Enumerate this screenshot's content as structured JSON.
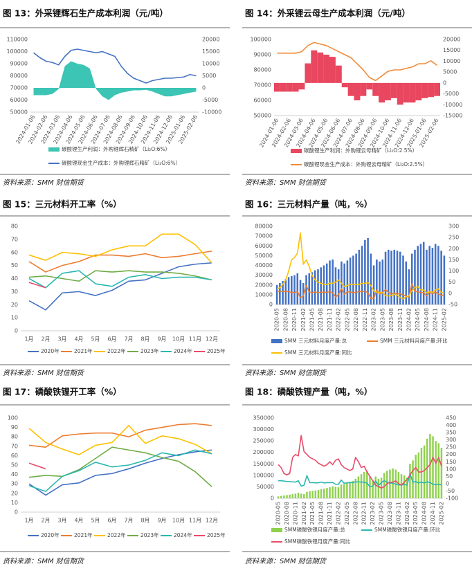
{
  "chart_data": [
    {
      "type": "combo",
      "title": "图 13：外采锂辉石生产成本利润（元/吨）",
      "source": "资料来源：SMM 财信期货",
      "categories": [
        "2024-01-06",
        null,
        "2024-02-06",
        null,
        "2024-03-06",
        null,
        "2024-04-06",
        null,
        "2024-05-06",
        null,
        "2024-06-06",
        null,
        "2024-07-06",
        null,
        "2024-08-06",
        null,
        "2024-09-06",
        null,
        "2024-10-06",
        null,
        "2024-11-06",
        null,
        "2024-12-06",
        null,
        "2025-01-06",
        null,
        "2025-02-06"
      ],
      "ylim": [
        50000,
        110000
      ],
      "yticks": [
        50000,
        60000,
        70000,
        80000,
        90000,
        100000,
        110000
      ],
      "y2lim": [
        -10000,
        20000
      ],
      "y2ticks": [
        -10000,
        -5000,
        0,
        5000,
        10000,
        15000,
        20000
      ],
      "series": [
        {
          "name": "碳酸锂生产利润：外购锂辉石精矿（Li₂O:6%）",
          "type": "area",
          "axis": "y2",
          "color": "#3cc4b4",
          "values": [
            -3000,
            -3000,
            -3000,
            -2500,
            -500,
            9000,
            11000,
            10000,
            9500,
            8000,
            -500,
            -3500,
            -5000,
            -3000,
            -2000,
            -1500,
            -1000,
            -1000,
            -800,
            -1500,
            -2500,
            -3500,
            -3500,
            -3000,
            -2500,
            -2000,
            -1500
          ]
        },
        {
          "name": "碳酸锂现金生产成本：外购锂辉石精矿（Li₂O:6%）",
          "type": "line",
          "axis": "y",
          "color": "#4472c4",
          "values": [
            99000,
            95000,
            92000,
            91000,
            89000,
            96000,
            101000,
            102000,
            101000,
            100000,
            99000,
            100000,
            98000,
            96000,
            88000,
            82000,
            78000,
            76000,
            74000,
            76000,
            77000,
            78000,
            78000,
            78500,
            79000,
            81000,
            80000
          ]
        }
      ]
    },
    {
      "type": "combo",
      "title": "图 14：外采锂云母生产成本利润（元/吨）",
      "source": "资料来源：SMM 财信期货",
      "categories": [
        "2024-01-06",
        null,
        "2024-02-06",
        null,
        "2024-03-06",
        null,
        "2024-04-06",
        null,
        "2024-05-06",
        null,
        "2024-06-06",
        null,
        "2024-07-06",
        null,
        "2024-08-06",
        null,
        "2024-09-06",
        null,
        "2024-10-06",
        null,
        "2024-11-06",
        null,
        "2024-12-06",
        null,
        "2025-01-06",
        null,
        "2025-02-06"
      ],
      "ylim": [
        50000,
        100000
      ],
      "yticks": [
        50000,
        60000,
        70000,
        80000,
        90000,
        100000
      ],
      "y2lim": [
        -15000,
        20000
      ],
      "y2ticks": [
        -15000,
        -10000,
        -5000,
        0,
        5000,
        10000,
        15000,
        20000
      ],
      "series": [
        {
          "name": "碳酸锂生产利润：外购锂云母精矿（Li₂O:2.5%）",
          "type": "bar",
          "axis": "y2",
          "color": "#e8475f",
          "values": [
            -4000,
            -4000,
            -4000,
            -4000,
            -3000,
            9000,
            15000,
            14000,
            13000,
            12000,
            8000,
            -2000,
            -6000,
            -8000,
            -6000,
            -3000,
            -6000,
            -9000,
            -8000,
            -7000,
            -10000,
            -9000,
            -9000,
            -8000,
            -7000,
            -6500,
            -6000
          ]
        },
        {
          "name": "碳酸锂现金生产成本：外购锂云母精矿（Li₂O:2.5%）",
          "type": "line",
          "axis": "y",
          "color": "#f08c3a",
          "values": [
            91000,
            91000,
            91000,
            91000,
            92000,
            96000,
            98000,
            97000,
            96000,
            94000,
            92000,
            90000,
            88000,
            84000,
            80000,
            75000,
            73000,
            76000,
            79000,
            80000,
            80000,
            81000,
            82000,
            84000,
            84000,
            86000,
            83000
          ]
        }
      ]
    },
    {
      "type": "line",
      "title": "图 15：三元材料开工率（%）",
      "source": "资料来源：SMM 财信期货",
      "categories": [
        "1月",
        "2月",
        "3月",
        "4月",
        "5月",
        "6月",
        "7月",
        "8月",
        "9月",
        "10月",
        "11月",
        "12月"
      ],
      "ylim": [
        0,
        80
      ],
      "yticks": [
        0,
        10,
        20,
        30,
        40,
        50,
        60,
        70,
        80
      ],
      "series": [
        {
          "name": "2020年",
          "color": "#4472c4",
          "values": [
            23,
            16,
            29,
            30,
            27,
            31,
            38,
            39,
            44,
            49,
            51,
            52
          ]
        },
        {
          "name": "2021年",
          "color": "#ed7d31",
          "values": [
            53,
            45,
            50,
            53,
            58,
            58,
            57,
            59,
            56,
            57,
            59,
            61
          ]
        },
        {
          "name": "2022年",
          "color": "#ffc000",
          "values": [
            58,
            54,
            60,
            59,
            57,
            62,
            65,
            65,
            74,
            74,
            66,
            52
          ]
        },
        {
          "name": "2023年",
          "color": "#70ad47",
          "values": [
            41,
            42,
            40,
            38,
            46,
            45,
            46,
            45,
            45,
            44,
            42,
            39
          ]
        },
        {
          "name": "2024年",
          "color": "#2ab7b0",
          "values": [
            40,
            33,
            44,
            46,
            36,
            34,
            41,
            43,
            40,
            41,
            41,
            39
          ]
        },
        {
          "name": "2025年",
          "color": "#e84c6a",
          "values": [
            37,
            33,
            null,
            null,
            null,
            null,
            null,
            null,
            null,
            null,
            null,
            null
          ]
        }
      ]
    },
    {
      "type": "combo",
      "title": "图 16：三元材料产量（吨，%）",
      "source": "资料来源：SMM 财信期货",
      "categories": [
        "2020-05",
        null,
        null,
        "2020-08",
        null,
        null,
        "2020-11",
        null,
        null,
        "2021-02",
        null,
        null,
        "2021-05",
        null,
        null,
        "2021-08",
        null,
        null,
        "2021-11",
        null,
        null,
        "2022-02",
        null,
        null,
        "2022-05",
        null,
        null,
        "2022-08",
        null,
        null,
        "2022-11",
        null,
        null,
        "2023-02",
        null,
        null,
        "2023-05",
        null,
        null,
        "2023-08",
        null,
        null,
        "2023-11",
        null,
        null,
        "2024-02",
        null,
        null,
        "2024-05",
        null,
        null,
        "2024-08",
        null,
        null,
        "2024-11",
        null,
        null,
        "2025-02"
      ],
      "ylim": [
        0,
        80000
      ],
      "yticks": [
        0,
        10000,
        20000,
        30000,
        40000,
        50000,
        60000,
        70000,
        80000
      ],
      "y2lim": [
        -50,
        300
      ],
      "y2ticks": [
        -50,
        0,
        50,
        100,
        150,
        200,
        250,
        300
      ],
      "series": [
        {
          "name": "SMM 三元材料月度产量:总",
          "type": "bar",
          "axis": "y",
          "color": "#4472c4",
          "values": [
            20000,
            22000,
            24000,
            26000,
            28000,
            29000,
            30000,
            32000,
            25000,
            22000,
            30000,
            32000,
            33000,
            35000,
            36000,
            38000,
            40000,
            42000,
            45000,
            46000,
            38000,
            36000,
            44000,
            42000,
            45000,
            48000,
            50000,
            52000,
            56000,
            60000,
            66000,
            68000,
            52000,
            40000,
            46000,
            44000,
            46000,
            54000,
            56000,
            55000,
            56000,
            55000,
            54000,
            50000,
            44000,
            36000,
            52000,
            56000,
            60000,
            62000,
            64000,
            56000,
            60000,
            58000,
            62000,
            60000,
            55000,
            50000
          ]
        },
        {
          "name": "SMM 三元材料月度产量:环比",
          "type": "line",
          "axis": "y2",
          "color": "#ed7d31",
          "values": [
            5,
            10,
            8,
            9,
            7,
            4,
            3,
            8,
            -20,
            -12,
            35,
            6,
            3,
            6,
            3,
            5,
            5,
            5,
            7,
            2,
            -17,
            -5,
            22,
            -4,
            7,
            6,
            4,
            4,
            8,
            7,
            10,
            3,
            -23,
            -23,
            15,
            -4,
            5,
            17,
            4,
            -2,
            2,
            -2,
            -2,
            -7,
            -12,
            -18,
            44,
            8,
            7,
            3,
            3,
            -12,
            7,
            -3,
            7,
            -3,
            -8,
            -9
          ]
        },
        {
          "name": "SMM 三元材料月度产量:同比",
          "type": "line",
          "axis": "y2",
          "color": "#ffc000",
          "values": [
            20,
            25,
            40,
            60,
            100,
            150,
            160,
            180,
            270,
            130,
            150,
            120,
            80,
            60,
            50,
            45,
            40,
            40,
            45,
            45,
            50,
            60,
            45,
            30,
            35,
            40,
            40,
            40,
            40,
            45,
            45,
            48,
            35,
            10,
            5,
            5,
            2,
            -10,
            -12,
            -10,
            -5,
            -8,
            -18,
            -25,
            -15,
            -10,
            12,
            27,
            30,
            15,
            15,
            2,
            7,
            5,
            15,
            20,
            5,
            2
          ]
        }
      ]
    },
    {
      "type": "line",
      "title": "图 17：磷酸铁锂开工率（%）",
      "source": "资料来源：SMM 财信期货",
      "categories": [
        "1月",
        "2月",
        "3月",
        "4月",
        "5月",
        "6月",
        "7月",
        "8月",
        "9月",
        "10月",
        "11月",
        "12月"
      ],
      "ylim": [
        0,
        100
      ],
      "yticks": [
        0,
        10,
        20,
        30,
        40,
        50,
        60,
        70,
        80,
        90,
        100
      ],
      "series": [
        {
          "name": "2020年",
          "color": "#4472c4",
          "values": [
            30,
            18,
            29,
            31,
            39,
            41,
            46,
            52,
            57,
            61,
            64,
            66
          ]
        },
        {
          "name": "2021年",
          "color": "#ed7d31",
          "values": [
            71,
            69,
            81,
            83,
            84,
            84,
            80,
            87,
            90,
            93,
            94,
            92
          ]
        },
        {
          "name": "2022年",
          "color": "#ffc000",
          "values": [
            89,
            74,
            67,
            61,
            71,
            74,
            92,
            73,
            81,
            78,
            72,
            62
          ]
        },
        {
          "name": "2023年",
          "color": "#70ad47",
          "values": [
            37,
            39,
            38,
            45,
            57,
            69,
            66,
            63,
            58,
            54,
            43,
            27
          ]
        },
        {
          "name": "2024年",
          "color": "#2ab7b0",
          "values": [
            28,
            22,
            38,
            44,
            53,
            48,
            50,
            55,
            63,
            60,
            66,
            62
          ]
        },
        {
          "name": "2025年",
          "color": "#e84c6a",
          "values": [
            52,
            46,
            null,
            null,
            null,
            null,
            null,
            null,
            null,
            null,
            null,
            null
          ]
        }
      ]
    },
    {
      "type": "combo",
      "title": "图 18：磷酸铁锂产量（吨，%）",
      "source": "资料来源：SMM 财信期货",
      "categories": [
        "2020-05",
        null,
        null,
        "2020-08",
        null,
        null,
        "2020-11",
        null,
        null,
        "2021-02",
        null,
        null,
        "2021-05",
        null,
        null,
        "2021-08",
        null,
        null,
        "2021-11",
        null,
        null,
        "2022-02",
        null,
        null,
        "2022-05",
        null,
        null,
        "2022-08",
        null,
        null,
        "2022-11",
        null,
        null,
        "2023-02",
        null,
        null,
        "2023-05",
        null,
        null,
        "2023-08",
        null,
        null,
        "2023-11",
        null,
        null,
        "2024-02",
        null,
        null,
        "2024-05",
        null,
        null,
        "2024-08",
        null,
        null,
        "2024-11",
        null,
        null,
        "2025-02"
      ],
      "ylim": [
        0,
        350000
      ],
      "yticks": [
        0,
        50000,
        100000,
        150000,
        200000,
        250000,
        300000,
        350000
      ],
      "y2lim": [
        -100,
        450
      ],
      "y2ticks": [
        -100,
        -50,
        0,
        50,
        100,
        150,
        200,
        250,
        300,
        350,
        400,
        450
      ],
      "series": [
        {
          "name": "SMM磷酸铁锂月度产量:总",
          "type": "bar",
          "axis": "y",
          "color": "#8fd14f",
          "values": [
            8000,
            10000,
            12000,
            14000,
            16000,
            18000,
            20000,
            24000,
            20000,
            18000,
            28000,
            30000,
            32000,
            34000,
            36000,
            40000,
            42000,
            45000,
            48000,
            52000,
            50000,
            48000,
            60000,
            62000,
            65000,
            70000,
            75000,
            85000,
            95000,
            105000,
            115000,
            120000,
            95000,
            80000,
            95000,
            85000,
            90000,
            110000,
            120000,
            125000,
            130000,
            125000,
            115000,
            105000,
            100000,
            90000,
            150000,
            165000,
            190000,
            200000,
            220000,
            230000,
            260000,
            280000,
            270000,
            250000,
            240000,
            220000
          ]
        },
        {
          "name": "SMM磷酸铁锂月度产量:环比",
          "type": "line",
          "axis": "y2",
          "color": "#2ab7b0",
          "values": [
            20,
            20,
            18,
            15,
            14,
            12,
            11,
            20,
            -17,
            -10,
            55,
            7,
            7,
            6,
            6,
            11,
            5,
            7,
            7,
            8,
            -4,
            -4,
            25,
            3,
            5,
            8,
            7,
            13,
            12,
            11,
            10,
            4,
            -21,
            -16,
            19,
            -11,
            6,
            22,
            9,
            4,
            4,
            -4,
            -8,
            -9,
            -5,
            -10,
            67,
            10,
            15,
            5,
            10,
            5,
            13,
            8,
            -4,
            -7,
            -4,
            -8
          ]
        },
        {
          "name": "SMM磷酸铁锂月度产量:同比",
          "type": "line",
          "axis": "y2",
          "color": "#e84c6a",
          "values": [
            130,
            110,
            70,
            60,
            70,
            180,
            200,
            190,
            330,
            220,
            200,
            180,
            170,
            160,
            140,
            130,
            120,
            130,
            150,
            130,
            160,
            170,
            130,
            110,
            100,
            90,
            100,
            180,
            150,
            110,
            120,
            80,
            50,
            20,
            -10,
            -20,
            -30,
            -20,
            0,
            10,
            10,
            20,
            0,
            -10,
            10,
            30,
            60,
            90,
            110,
            80,
            80,
            90,
            110,
            130,
            180,
            140,
            180,
            120
          ]
        }
      ]
    }
  ]
}
